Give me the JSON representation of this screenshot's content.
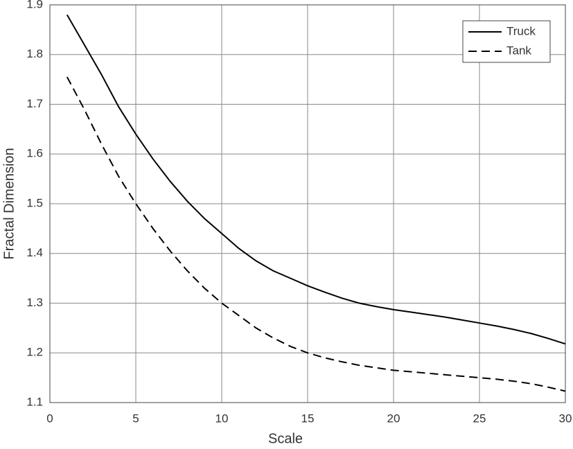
{
  "chart_data": {
    "type": "line",
    "xlabel": "Scale",
    "ylabel": "Fractal Dimension",
    "x": [
      1,
      2,
      3,
      4,
      5,
      6,
      7,
      8,
      9,
      10,
      11,
      12,
      13,
      14,
      15,
      16,
      17,
      18,
      19,
      20,
      21,
      22,
      23,
      24,
      25,
      26,
      27,
      28,
      29,
      30
    ],
    "series": [
      {
        "name": "Truck",
        "color": "#000000",
        "linestyle": "solid",
        "values": [
          1.88,
          1.82,
          1.76,
          1.695,
          1.64,
          1.59,
          1.545,
          1.505,
          1.47,
          1.44,
          1.41,
          1.385,
          1.365,
          1.35,
          1.335,
          1.322,
          1.31,
          1.3,
          1.293,
          1.287,
          1.282,
          1.277,
          1.272,
          1.266,
          1.26,
          1.254,
          1.247,
          1.239,
          1.229,
          1.218
        ]
      },
      {
        "name": "Tank",
        "color": "#000000",
        "linestyle": "dashed",
        "values": [
          1.755,
          1.69,
          1.62,
          1.555,
          1.5,
          1.45,
          1.405,
          1.365,
          1.33,
          1.3,
          1.275,
          1.25,
          1.23,
          1.213,
          1.2,
          1.19,
          1.182,
          1.175,
          1.17,
          1.165,
          1.162,
          1.159,
          1.156,
          1.153,
          1.15,
          1.147,
          1.143,
          1.138,
          1.131,
          1.123
        ]
      }
    ],
    "xlim": [
      0,
      30
    ],
    "xticks": [
      0,
      5,
      10,
      15,
      20,
      25,
      30
    ],
    "ylim": [
      1.1,
      1.9
    ],
    "yticks": [
      1.1,
      1.2,
      1.3,
      1.4,
      1.5,
      1.6,
      1.7,
      1.8,
      1.9
    ],
    "grid": true,
    "legend": "upper right"
  }
}
